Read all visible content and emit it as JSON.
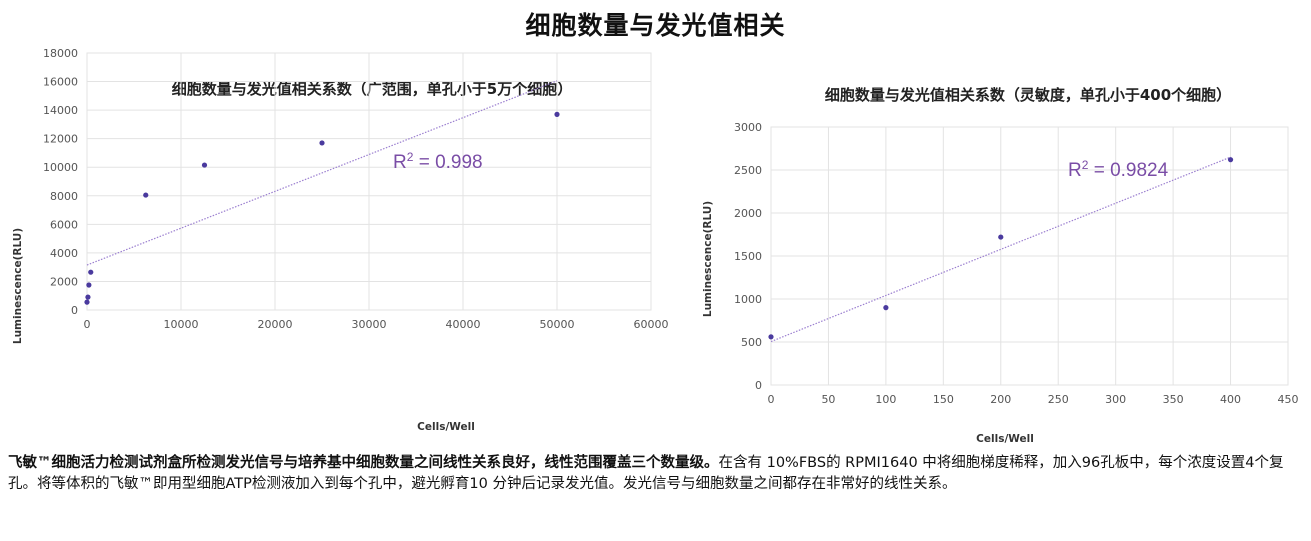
{
  "page": {
    "title": "细胞数量与发光值相关"
  },
  "description": {
    "lead": "飞敏™细胞活力检测试剂盒所检测发光信号与培养基中细胞数量之间线性关系良好，线性范围覆盖三个数量级。",
    "body": "在含有 10%FBS的 RPMI1640 中将细胞梯度稀释，加入96孔板中，每个浓度设置4个复孔。将等体积的飞敏™即用型细胞ATP检测液加入到每个孔中，避光孵育10 分钟后记录发光值。发光信号与细胞数量之间都存在非常好的线性关系。"
  },
  "chart_data": [
    {
      "type": "scatter",
      "title": "细胞数量与发光值相关系数（广范围，单孔小于5万个细胞）",
      "xlabel": "Cells/Well",
      "ylabel": "Luminescence(RLU)",
      "xlim": [
        0,
        60000
      ],
      "ylim": [
        0,
        18000
      ],
      "xticks": [
        0,
        10000,
        20000,
        30000,
        40000,
        50000,
        60000
      ],
      "yticks": [
        0,
        2000,
        4000,
        6000,
        8000,
        10000,
        12000,
        14000,
        16000,
        18000
      ],
      "grid": true,
      "points": [
        {
          "x": 0,
          "y": 550
        },
        {
          "x": 100,
          "y": 900
        },
        {
          "x": 200,
          "y": 1750
        },
        {
          "x": 400,
          "y": 2650
        },
        {
          "x": 6250,
          "y": 8050
        },
        {
          "x": 12500,
          "y": 10150
        },
        {
          "x": 25000,
          "y": 11700
        },
        {
          "x": 50000,
          "y": 13700
        }
      ],
      "trendline": {
        "type": "linear",
        "x": [
          0,
          50000
        ],
        "y": [
          3150,
          16050
        ]
      },
      "r2_base": "R",
      "r2_sup": "2",
      "r2_value": " = 0.998",
      "marker_color": "#4a3a9e",
      "trendline_color": "#9b7fd0",
      "r2_color": "#7a4da6"
    },
    {
      "type": "scatter",
      "title": "细胞数量与发光值相关系数（灵敏度，单孔小于400个细胞）",
      "xlabel": "Cells/Well",
      "ylabel": "Luminescence(RLU)",
      "xlim": [
        0,
        450
      ],
      "ylim": [
        0,
        3000
      ],
      "xticks": [
        0,
        50,
        100,
        150,
        200,
        250,
        300,
        350,
        400,
        450
      ],
      "yticks": [
        0,
        500,
        1000,
        1500,
        2000,
        2500,
        3000
      ],
      "grid": true,
      "points": [
        {
          "x": 0,
          "y": 560
        },
        {
          "x": 100,
          "y": 900
        },
        {
          "x": 200,
          "y": 1720
        },
        {
          "x": 400,
          "y": 2620
        }
      ],
      "trendline": {
        "type": "linear",
        "x": [
          0,
          400
        ],
        "y": [
          505,
          2650
        ]
      },
      "r2_base": "R",
      "r2_sup": "2",
      "r2_value": " = 0.9824",
      "marker_color": "#4a3a9e",
      "trendline_color": "#9b7fd0",
      "r2_color": "#7a4da6"
    }
  ]
}
